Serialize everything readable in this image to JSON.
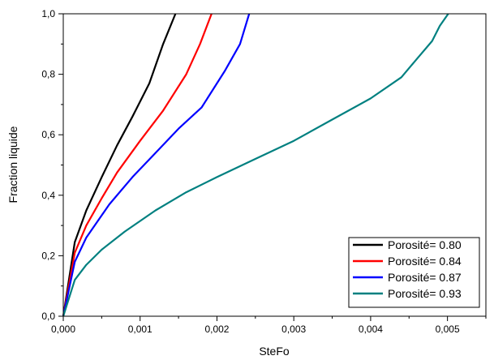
{
  "chart_data": {
    "type": "line",
    "title": "",
    "xlabel": "SteFo",
    "ylabel": "Fraction liquide",
    "xlim": [
      0,
      0.0055
    ],
    "ylim": [
      0,
      1.0
    ],
    "x_ticks": [
      "0,000",
      "0,001",
      "0,002",
      "0,003",
      "0,004",
      "0,005"
    ],
    "y_ticks": [
      "0,0",
      "0,2",
      "0,4",
      "0,6",
      "0,8",
      "1,0"
    ],
    "grid": false,
    "legend_position": "bottom-right",
    "series": [
      {
        "name": "Porosité= 0.80",
        "color": "#000000",
        "points": [
          [
            0,
            0
          ],
          [
            0.00015,
            0.245
          ],
          [
            0.0003,
            0.35
          ],
          [
            0.0005,
            0.46
          ],
          [
            0.0007,
            0.565
          ],
          [
            0.0009,
            0.66
          ],
          [
            0.00112,
            0.77
          ],
          [
            0.0013,
            0.9
          ],
          [
            0.00146,
            1.0
          ]
        ]
      },
      {
        "name": "Porosité= 0.84",
        "color": "#ff0000",
        "points": [
          [
            0,
            0
          ],
          [
            0.00015,
            0.21
          ],
          [
            0.0003,
            0.3
          ],
          [
            0.0005,
            0.39
          ],
          [
            0.0007,
            0.475
          ],
          [
            0.001,
            0.58
          ],
          [
            0.0013,
            0.68
          ],
          [
            0.0016,
            0.8
          ],
          [
            0.00178,
            0.9
          ],
          [
            0.00193,
            1.0
          ]
        ]
      },
      {
        "name": "Porosité= 0.87",
        "color": "#0000ff",
        "points": [
          [
            0,
            0
          ],
          [
            0.00015,
            0.18
          ],
          [
            0.0003,
            0.26
          ],
          [
            0.0006,
            0.37
          ],
          [
            0.0009,
            0.46
          ],
          [
            0.0012,
            0.54
          ],
          [
            0.0015,
            0.62
          ],
          [
            0.0018,
            0.69
          ],
          [
            0.0021,
            0.81
          ],
          [
            0.0023,
            0.9
          ],
          [
            0.00242,
            1.0
          ]
        ]
      },
      {
        "name": "Porosité= 0.93",
        "color": "#008080",
        "points": [
          [
            0,
            0
          ],
          [
            0.00015,
            0.12
          ],
          [
            0.0003,
            0.17
          ],
          [
            0.0005,
            0.22
          ],
          [
            0.0008,
            0.28
          ],
          [
            0.0012,
            0.35
          ],
          [
            0.0016,
            0.41
          ],
          [
            0.002,
            0.46
          ],
          [
            0.0025,
            0.52
          ],
          [
            0.003,
            0.58
          ],
          [
            0.0035,
            0.65
          ],
          [
            0.004,
            0.72
          ],
          [
            0.0044,
            0.79
          ],
          [
            0.0046,
            0.85
          ],
          [
            0.0048,
            0.91
          ],
          [
            0.0049,
            0.96
          ],
          [
            0.00501,
            1.0
          ]
        ]
      }
    ]
  }
}
